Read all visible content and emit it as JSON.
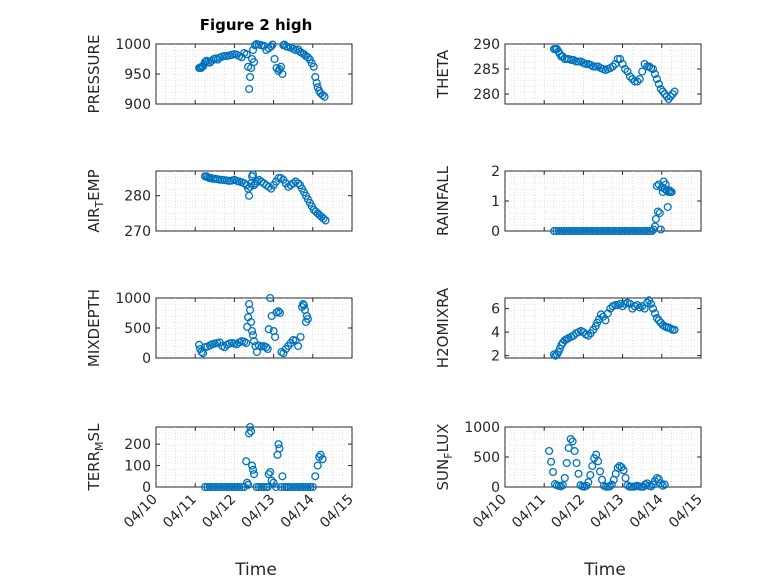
{
  "figure": {
    "title": "Figure 2 high",
    "marker_color": "#0072bd",
    "xlabel": "Time",
    "x_tick_labels": [
      "04/10",
      "04/11",
      "04/12",
      "04/13",
      "04/14",
      "04/15"
    ],
    "panel_order": [
      "PRESSURE",
      "THETA",
      "AIR_TEMP",
      "RAINFALL",
      "MIXDEPTH",
      "H2OMIXRA",
      "TERR_MSL",
      "SUN_FLUX"
    ]
  },
  "chart_data": [
    {
      "type": "scatter",
      "ylabel": "PRESSURE",
      "ylabel_main": "PRESSURE",
      "ylabel_sub": "",
      "ylabel_tail": "",
      "xlim": [
        1.0,
        5.0
      ],
      "ylim": [
        900,
        1000
      ],
      "yticks": [
        900,
        950,
        1000
      ],
      "x": [
        1.88,
        1.9,
        1.92,
        1.94,
        1.96,
        1.98,
        2.0,
        2.03,
        2.06,
        2.1,
        2.14,
        2.18,
        2.22,
        2.26,
        2.3,
        2.35,
        2.4,
        2.45,
        2.5,
        2.55,
        2.6,
        2.65,
        2.7,
        2.75,
        2.8,
        2.85,
        2.88,
        2.9,
        2.92,
        2.94,
        2.96,
        2.98,
        3.0,
        3.02,
        3.05,
        3.1,
        3.15,
        3.2,
        3.25,
        3.3,
        3.35,
        3.38,
        3.42,
        3.46,
        3.5,
        3.52,
        3.55,
        3.58,
        3.6,
        3.62,
        3.66,
        3.7,
        3.75,
        3.8,
        3.85,
        3.9,
        3.94,
        3.98,
        4.02,
        4.06,
        4.1,
        4.14,
        4.18,
        4.22,
        4.25,
        4.28,
        4.3,
        4.33,
        4.36,
        4.4,
        4.44
      ],
      "y": [
        960,
        961,
        960,
        962,
        963,
        966,
        970,
        972,
        970,
        969,
        972,
        975,
        976,
        974,
        977,
        979,
        980,
        980,
        981,
        982,
        983,
        982,
        980,
        978,
        985,
        983,
        962,
        925,
        945,
        960,
        975,
        990,
        970,
        998,
        1000,
        999,
        998,
        997,
        990,
        993,
        996,
        999,
        975,
        960,
        955,
        958,
        962,
        950,
        998,
        999,
        996,
        995,
        994,
        992,
        990,
        991,
        987,
        985,
        983,
        980,
        978,
        974,
        968,
        962,
        945,
        935,
        928,
        922,
        918,
        915,
        912
      ]
    },
    {
      "type": "scatter",
      "ylabel": "THETA",
      "ylabel_main": "THETA",
      "ylabel_sub": "",
      "ylabel_tail": "",
      "xlim": [
        1.0,
        5.0
      ],
      "ylim": [
        278,
        290
      ],
      "yticks": [
        280,
        285,
        290
      ],
      "x": [
        2.0,
        2.03,
        2.06,
        2.09,
        2.12,
        2.15,
        2.18,
        2.22,
        2.26,
        2.3,
        2.35,
        2.4,
        2.45,
        2.5,
        2.55,
        2.6,
        2.65,
        2.7,
        2.75,
        2.8,
        2.85,
        2.9,
        2.95,
        3.0,
        3.05,
        3.1,
        3.15,
        3.2,
        3.25,
        3.3,
        3.35,
        3.4,
        3.45,
        3.5,
        3.55,
        3.6,
        3.65,
        3.7,
        3.75,
        3.8,
        3.85,
        3.9,
        3.94,
        3.98,
        4.02,
        4.06,
        4.1,
        4.14,
        4.18,
        4.22,
        4.26,
        4.3,
        4.34,
        4.38,
        4.42,
        4.46
      ],
      "y": [
        289,
        289,
        289,
        288.5,
        288,
        287.5,
        287.5,
        287,
        287,
        287,
        286.8,
        286.8,
        286.5,
        286.5,
        286.5,
        286.2,
        286,
        286,
        285.8,
        285.5,
        285.5,
        285.5,
        285.2,
        285,
        284.8,
        285,
        285.2,
        285.5,
        286,
        287,
        287,
        286,
        285,
        284.5,
        283.5,
        283,
        282.5,
        282.5,
        283,
        284.5,
        286,
        285.5,
        285.5,
        285.2,
        285,
        284,
        283,
        282,
        281,
        280.5,
        280,
        279.5,
        279,
        279.5,
        280,
        280.5
      ]
    },
    {
      "type": "scatter",
      "ylabel": "AIR_TEMP",
      "ylabel_main": "AIR",
      "ylabel_sub": "T",
      "ylabel_tail": "EMP",
      "xlim": [
        1.0,
        5.0
      ],
      "ylim": [
        270,
        287
      ],
      "yticks": [
        270,
        280
      ],
      "x": [
        2.0,
        2.03,
        2.06,
        2.09,
        2.12,
        2.16,
        2.2,
        2.25,
        2.3,
        2.35,
        2.4,
        2.45,
        2.5,
        2.55,
        2.6,
        2.65,
        2.7,
        2.75,
        2.8,
        2.85,
        2.88,
        2.9,
        2.92,
        2.94,
        2.96,
        2.98,
        3.0,
        3.03,
        3.06,
        3.1,
        3.15,
        3.2,
        3.25,
        3.3,
        3.35,
        3.4,
        3.45,
        3.5,
        3.55,
        3.6,
        3.65,
        3.7,
        3.75,
        3.8,
        3.85,
        3.9,
        3.94,
        3.98,
        4.02,
        4.06,
        4.1,
        4.14,
        4.18,
        4.22,
        4.26,
        4.3,
        4.34,
        4.38,
        4.42,
        4.46
      ],
      "y": [
        285.5,
        285.5,
        285.2,
        285,
        285,
        284.8,
        284.8,
        284.7,
        284.5,
        284.5,
        284.4,
        284.3,
        284.2,
        284.3,
        284.5,
        284.2,
        284,
        283.8,
        283.5,
        283,
        282,
        280,
        282.5,
        283.5,
        285.5,
        286,
        283,
        283.5,
        284,
        284.5,
        284,
        283.5,
        283,
        282.5,
        282,
        283,
        284,
        285,
        285,
        284.5,
        283.5,
        282.5,
        283,
        283.5,
        284,
        283.5,
        283,
        282,
        281,
        280,
        279,
        278,
        277,
        276,
        275.5,
        275,
        274.5,
        274,
        273.5,
        273
      ]
    },
    {
      "type": "scatter",
      "ylabel": "RAINFALL",
      "ylabel_main": "RAINFALL",
      "ylabel_sub": "",
      "ylabel_tail": "",
      "xlim": [
        1.0,
        5.0
      ],
      "ylim": [
        0,
        2
      ],
      "yticks": [
        0,
        1,
        2
      ],
      "x": [
        2.0,
        2.05,
        2.1,
        2.15,
        2.2,
        2.25,
        2.3,
        2.35,
        2.4,
        2.45,
        2.5,
        2.55,
        2.6,
        2.65,
        2.7,
        2.75,
        2.8,
        2.85,
        2.9,
        2.95,
        3.0,
        3.05,
        3.1,
        3.15,
        3.2,
        3.25,
        3.3,
        3.35,
        3.4,
        3.45,
        3.5,
        3.55,
        3.6,
        3.65,
        3.7,
        3.75,
        3.8,
        3.85,
        3.9,
        3.95,
        4.0,
        4.03,
        4.06,
        4.08,
        4.1,
        4.12,
        4.14,
        4.16,
        4.18,
        4.2,
        4.22,
        4.24,
        4.26,
        4.28,
        4.3,
        4.32,
        4.34,
        4.36,
        4.38,
        4.4
      ],
      "y": [
        0,
        0,
        0,
        0,
        0,
        0,
        0,
        0,
        0,
        0,
        0,
        0,
        0,
        0,
        0,
        0,
        0,
        0,
        0,
        0,
        0,
        0,
        0,
        0,
        0,
        0,
        0,
        0,
        0,
        0,
        0,
        0,
        0,
        0,
        0,
        0,
        0,
        0,
        0,
        0,
        0,
        0.05,
        0.15,
        0.4,
        1.5,
        0.65,
        1.55,
        0.6,
        0.05,
        1.45,
        1.3,
        1.65,
        1.4,
        1.55,
        1.35,
        0.8,
        1.3,
        1.35,
        1.3,
        1.3
      ]
    },
    {
      "type": "scatter",
      "ylabel": "MIXDEPTH",
      "ylabel_main": "MIXDEPTH",
      "ylabel_sub": "",
      "ylabel_tail": "",
      "xlim": [
        1.0,
        5.0
      ],
      "ylim": [
        0,
        1000
      ],
      "yticks": [
        0,
        500,
        1000
      ],
      "x": [
        1.88,
        1.9,
        1.93,
        1.96,
        2.0,
        2.05,
        2.1,
        2.15,
        2.2,
        2.25,
        2.3,
        2.35,
        2.4,
        2.45,
        2.5,
        2.55,
        2.6,
        2.65,
        2.7,
        2.75,
        2.8,
        2.84,
        2.86,
        2.88,
        2.9,
        2.92,
        2.94,
        2.96,
        2.98,
        3.0,
        3.03,
        3.06,
        3.1,
        3.15,
        3.2,
        3.25,
        3.28,
        3.3,
        3.33,
        3.36,
        3.4,
        3.43,
        3.46,
        3.5,
        3.53,
        3.56,
        3.6,
        3.65,
        3.7,
        3.75,
        3.8,
        3.85,
        3.9,
        3.95,
        3.98,
        4.0,
        4.02,
        4.04,
        4.06,
        4.08,
        4.1
      ],
      "y": [
        220,
        150,
        100,
        80,
        180,
        190,
        210,
        230,
        240,
        250,
        260,
        200,
        180,
        220,
        240,
        250,
        240,
        230,
        260,
        280,
        270,
        250,
        520,
        680,
        900,
        800,
        600,
        450,
        380,
        280,
        200,
        100,
        210,
        190,
        200,
        180,
        150,
        480,
        1000,
        700,
        450,
        350,
        760,
        780,
        750,
        100,
        80,
        150,
        200,
        250,
        300,
        290,
        200,
        350,
        850,
        900,
        880,
        800,
        600,
        700,
        650
      ]
    },
    {
      "type": "scatter",
      "ylabel": "H2OMIXRA",
      "ylabel_main": "H2OMIXRA",
      "ylabel_sub": "",
      "ylabel_tail": "",
      "xlim": [
        1.0,
        5.0
      ],
      "ylim": [
        1.8,
        6.9
      ],
      "yticks": [
        2,
        4,
        6
      ],
      "x": [
        2.0,
        2.03,
        2.06,
        2.09,
        2.12,
        2.15,
        2.18,
        2.22,
        2.26,
        2.3,
        2.35,
        2.4,
        2.45,
        2.5,
        2.55,
        2.6,
        2.65,
        2.7,
        2.75,
        2.8,
        2.85,
        2.88,
        2.92,
        2.96,
        3.0,
        3.05,
        3.1,
        3.15,
        3.2,
        3.25,
        3.3,
        3.35,
        3.4,
        3.45,
        3.5,
        3.55,
        3.6,
        3.65,
        3.7,
        3.75,
        3.8,
        3.85,
        3.9,
        3.94,
        3.98,
        4.02,
        4.06,
        4.1,
        4.14,
        4.18,
        4.22,
        4.26,
        4.3,
        4.34,
        4.38,
        4.42,
        4.46
      ],
      "y": [
        2.1,
        2.0,
        2.1,
        2.3,
        2.6,
        2.9,
        3.1,
        3.3,
        3.4,
        3.5,
        3.6,
        3.7,
        3.9,
        4.0,
        4.1,
        4.0,
        3.8,
        3.7,
        3.9,
        4.2,
        4.5,
        4.8,
        5.1,
        5.5,
        5.3,
        5.0,
        5.6,
        6.0,
        6.2,
        6.3,
        6.3,
        6.4,
        6.2,
        6.4,
        6.5,
        6.4,
        6.0,
        6.2,
        6.3,
        6.1,
        6.2,
        6.0,
        6.5,
        6.7,
        6.4,
        6.0,
        5.6,
        5.2,
        5.0,
        4.8,
        4.6,
        4.5,
        4.4,
        4.4,
        4.3,
        4.2,
        4.2
      ]
    },
    {
      "type": "scatter",
      "ylabel": "TERR_MSL",
      "ylabel_main": "TERR",
      "ylabel_sub": "M",
      "ylabel_tail": "SL",
      "xlim": [
        1.0,
        5.0
      ],
      "ylim": [
        0,
        280
      ],
      "yticks": [
        0,
        100,
        200
      ],
      "x": [
        2.0,
        2.05,
        2.1,
        2.15,
        2.2,
        2.25,
        2.3,
        2.35,
        2.4,
        2.45,
        2.5,
        2.55,
        2.6,
        2.65,
        2.7,
        2.75,
        2.8,
        2.84,
        2.86,
        2.88,
        2.9,
        2.92,
        2.94,
        2.96,
        2.98,
        3.0,
        3.05,
        3.1,
        3.15,
        3.2,
        3.25,
        3.28,
        3.3,
        3.33,
        3.36,
        3.4,
        3.45,
        3.48,
        3.5,
        3.52,
        3.55,
        3.58,
        3.62,
        3.66,
        3.7,
        3.75,
        3.8,
        3.85,
        3.9,
        3.95,
        4.0,
        4.05,
        4.1,
        4.15,
        4.2,
        4.25,
        4.3,
        4.33,
        4.36,
        4.4
      ],
      "y": [
        0,
        0,
        0,
        0,
        0,
        0,
        0,
        0,
        0,
        0,
        0,
        0,
        0,
        0,
        0,
        0,
        0,
        120,
        20,
        10,
        250,
        280,
        260,
        100,
        80,
        60,
        0,
        0,
        0,
        0,
        0,
        0,
        60,
        70,
        30,
        20,
        0,
        150,
        200,
        180,
        0,
        50,
        0,
        0,
        0,
        0,
        0,
        0,
        0,
        0,
        0,
        0,
        0,
        0,
        0,
        50,
        100,
        140,
        150,
        130
      ]
    },
    {
      "type": "scatter",
      "ylabel": "SUN_FLUX",
      "ylabel_main": "SUN",
      "ylabel_sub": "F",
      "ylabel_tail": "LUX",
      "xlim": [
        1.0,
        5.0
      ],
      "ylim": [
        0,
        1000
      ],
      "yticks": [
        0,
        500,
        1000
      ],
      "x": [
        1.9,
        1.94,
        1.98,
        2.02,
        2.06,
        2.1,
        2.14,
        2.18,
        2.22,
        2.26,
        2.3,
        2.34,
        2.38,
        2.42,
        2.46,
        2.5,
        2.54,
        2.58,
        2.62,
        2.66,
        2.7,
        2.74,
        2.78,
        2.82,
        2.86,
        2.9,
        2.94,
        2.98,
        3.02,
        3.06,
        3.1,
        3.14,
        3.18,
        3.22,
        3.26,
        3.3,
        3.34,
        3.38,
        3.42,
        3.46,
        3.5,
        3.54,
        3.58,
        3.62,
        3.66,
        3.7,
        3.74,
        3.78,
        3.82,
        3.86,
        3.9,
        3.94,
        3.98,
        4.02,
        4.06,
        4.1,
        4.14,
        4.18,
        4.22,
        4.26
      ],
      "y": [
        600,
        420,
        250,
        50,
        30,
        20,
        10,
        30,
        150,
        400,
        650,
        800,
        760,
        600,
        400,
        220,
        30,
        10,
        5,
        20,
        80,
        200,
        350,
        480,
        540,
        430,
        260,
        120,
        20,
        5,
        5,
        10,
        40,
        120,
        220,
        320,
        350,
        330,
        280,
        150,
        30,
        5,
        5,
        5,
        10,
        20,
        10,
        5,
        5,
        40,
        60,
        20,
        10,
        40,
        100,
        150,
        130,
        60,
        20,
        40
      ]
    }
  ]
}
